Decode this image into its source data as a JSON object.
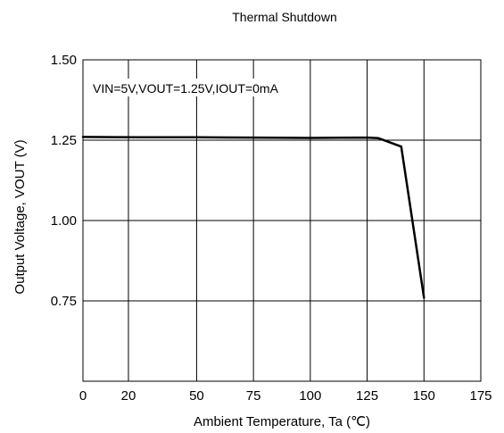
{
  "chart_data": {
    "type": "line",
    "title": "Thermal Shutdown",
    "xlabel": "Ambient Temperature, Ta (℃)",
    "ylabel": "Output Voltage, VOUT (V)",
    "annotation": "VIN=5V,VOUT=1.25V,IOUT=0mA",
    "xlim": [
      0,
      175
    ],
    "ylim": [
      0.5,
      1.5
    ],
    "x_ticks": [
      0,
      20,
      50,
      75,
      100,
      125,
      150,
      175
    ],
    "x_tick_labels": [
      "0",
      "20",
      "50",
      "75",
      "100",
      "125",
      "150",
      "175"
    ],
    "y_ticks": [
      0.75,
      1.0,
      1.25,
      1.5
    ],
    "y_tick_labels": [
      "0.75",
      "1.00",
      "1.25",
      "1.50"
    ],
    "grid": true,
    "series": [
      {
        "x": [
          0,
          25,
          50,
          75,
          100,
          125,
          130,
          140,
          150
        ],
        "y": [
          1.26,
          1.259,
          1.259,
          1.258,
          1.257,
          1.258,
          1.256,
          1.23,
          0.76
        ],
        "color": "#000000"
      }
    ]
  }
}
